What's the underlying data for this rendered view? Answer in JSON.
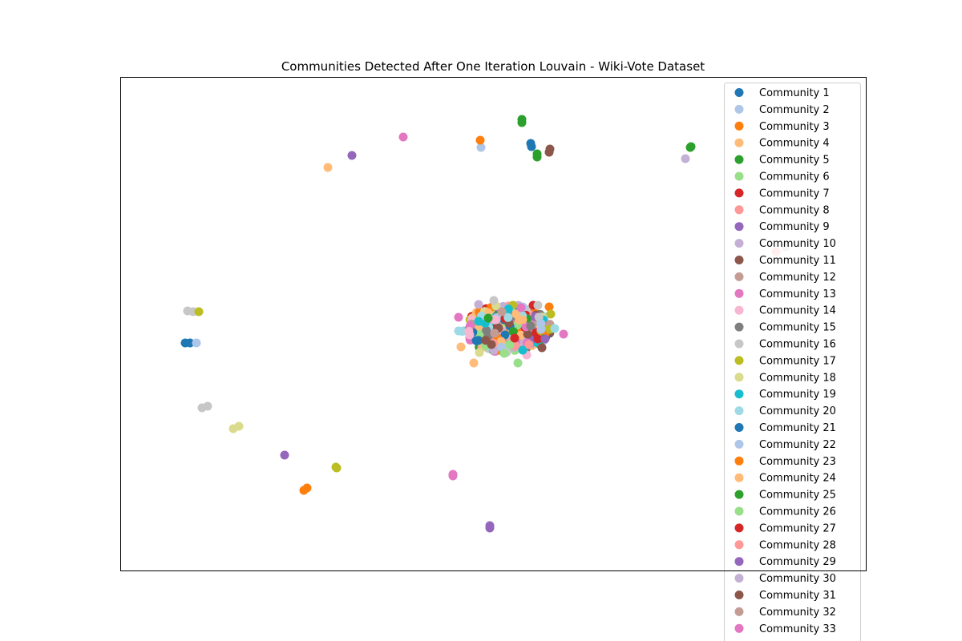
{
  "chart_data": {
    "type": "scatter",
    "title": "Communities Detected After One Iteration Louvain - Wiki-Vote Dataset",
    "xlabel": "",
    "ylabel": "",
    "axes_ticks": false,
    "grid": false,
    "legend_placement": "upper right (overflowing below the axes)",
    "series": [
      {
        "name": "Community 1",
        "color": "#1f77b4",
        "points": [
          [
            662,
            179
          ],
          [
            663,
            183
          ]
        ]
      },
      {
        "name": "Community 2",
        "color": "#aec7e8",
        "points": [
          [
            600,
            184
          ]
        ]
      },
      {
        "name": "Community 3",
        "color": "#ff7f0e",
        "points": [
          [
            599,
            175
          ],
          [
            685,
            383
          ]
        ]
      },
      {
        "name": "Community 4",
        "color": "#ffbb78",
        "points": [
          [
            409,
            209
          ],
          [
            575,
            433
          ],
          [
            591,
            453
          ]
        ]
      },
      {
        "name": "Community 5",
        "color": "#2ca02c",
        "points": [
          [
            651,
            149
          ],
          [
            651,
            153
          ],
          [
            670,
            192
          ],
          [
            670,
            196
          ],
          [
            861,
            184
          ],
          [
            862,
            183
          ]
        ]
      },
      {
        "name": "Community 6",
        "color": "#98df8a",
        "points": [
          [
            646,
            453
          ],
          [
            629,
            441
          ]
        ]
      },
      {
        "name": "Community 7",
        "color": "#d62728",
        "points": [
          [
            665,
            381
          ],
          [
            671,
            423
          ]
        ]
      },
      {
        "name": "Community 8",
        "color": "#ff9896",
        "points": [
          [
            968,
            314
          ],
          [
            639,
            426
          ]
        ]
      },
      {
        "name": "Community 9",
        "color": "#9467bd",
        "points": [
          [
            439,
            194
          ],
          [
            355,
            568
          ],
          [
            611,
            656
          ],
          [
            611,
            659
          ]
        ]
      },
      {
        "name": "Community 10",
        "color": "#c5b0d5",
        "points": [
          [
            855,
            198
          ],
          [
            597,
            380
          ]
        ]
      },
      {
        "name": "Community 11",
        "color": "#8c564b",
        "points": [
          [
            686,
            186
          ],
          [
            685,
            190
          ],
          [
            676,
            434
          ]
        ]
      },
      {
        "name": "Community 12",
        "color": "#c49c94",
        "points": [
          [
            617,
            416
          ]
        ]
      },
      {
        "name": "Community 13",
        "color": "#e377c2",
        "points": [
          [
            503,
            171
          ],
          [
            565,
            592
          ],
          [
            565,
            594
          ],
          [
            703,
            417
          ],
          [
            572,
            396
          ]
        ]
      },
      {
        "name": "Community 14",
        "color": "#f7b6d2",
        "points": [
          [
            657,
            443
          ]
        ]
      },
      {
        "name": "Community 15",
        "color": "#7f7f7f",
        "points": [
          [
            662,
            407
          ]
        ]
      },
      {
        "name": "Community 16",
        "color": "#c7c7c7",
        "points": [
          [
            234,
            388
          ],
          [
            241,
            389
          ],
          [
            252,
            509
          ],
          [
            259,
            507
          ],
          [
            616,
            375
          ],
          [
            671,
            381
          ]
        ]
      },
      {
        "name": "Community 17",
        "color": "#bcbd22",
        "points": [
          [
            248,
            389
          ],
          [
            419,
            583
          ],
          [
            420,
            584
          ],
          [
            687,
            392
          ],
          [
            686,
            411
          ]
        ]
      },
      {
        "name": "Community 18",
        "color": "#dbdb8d",
        "points": [
          [
            291,
            535
          ],
          [
            298,
            532
          ],
          [
            598,
            440
          ]
        ]
      },
      {
        "name": "Community 19",
        "color": "#17becf",
        "points": [
          [
            652,
            437
          ],
          [
            597,
            401
          ]
        ]
      },
      {
        "name": "Community 20",
        "color": "#9edae5",
        "points": [
          [
            572,
            413
          ],
          [
            692,
            410
          ]
        ]
      },
      {
        "name": "Community 21",
        "color": "#1f77b4",
        "points": [
          [
            231,
            428
          ],
          [
            237,
            428
          ]
        ]
      },
      {
        "name": "Community 22",
        "color": "#aec7e8",
        "points": [
          [
            245,
            428
          ],
          [
            675,
            411
          ]
        ]
      },
      {
        "name": "Community 23",
        "color": "#ff7f0e",
        "points": [
          [
            379,
            612
          ],
          [
            383,
            609
          ]
        ]
      },
      {
        "name": "Community 24",
        "color": "#ffbb78",
        "points": [
          [
            652,
            399
          ]
        ]
      },
      {
        "name": "Community 25",
        "color": "#2ca02c",
        "points": [
          [
            609,
            397
          ]
        ]
      },
      {
        "name": "Community 26",
        "color": "#98df8a",
        "points": [
          [
            636,
            430
          ]
        ]
      },
      {
        "name": "Community 27",
        "color": "#d62728",
        "points": [
          [
            642,
            422
          ]
        ]
      },
      {
        "name": "Community 28",
        "color": "#ff9896",
        "points": [
          [
            660,
            430
          ]
        ]
      },
      {
        "name": "Community 29",
        "color": "#9467bd",
        "points": [
          [
            680,
            423
          ]
        ]
      },
      {
        "name": "Community 30",
        "color": "#c5b0d5",
        "points": [
          [
            980,
            308
          ]
        ]
      },
      {
        "name": "Community 31",
        "color": "#8c564b",
        "points": [
          [
            613,
            430
          ]
        ]
      },
      {
        "name": "Community 32",
        "color": "#c49c94",
        "points": [
          [
            626,
            389
          ]
        ]
      },
      {
        "name": "Community 33",
        "color": "#e377c2",
        "points": [
          [
            650,
            384
          ]
        ]
      }
    ],
    "cluster": {
      "center": [
        632,
        410
      ],
      "rx": 56,
      "ry": 30,
      "count": 320,
      "palette": [
        "#1f77b4",
        "#aec7e8",
        "#ff7f0e",
        "#ffbb78",
        "#2ca02c",
        "#98df8a",
        "#d62728",
        "#ff9896",
        "#9467bd",
        "#c5b0d5",
        "#8c564b",
        "#c49c94",
        "#e377c2",
        "#f7b6d2",
        "#7f7f7f",
        "#c7c7c7",
        "#bcbd22",
        "#dbdb8d",
        "#17becf",
        "#9edae5"
      ]
    }
  }
}
